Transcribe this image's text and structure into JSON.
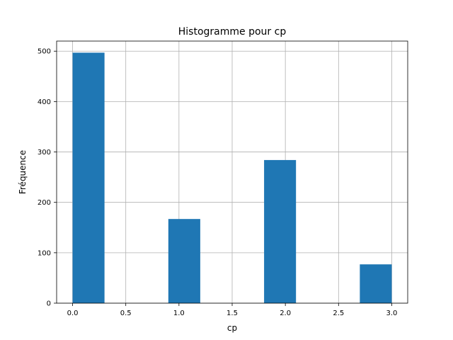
{
  "chart_data": {
    "type": "bar",
    "title": "Histogramme pour cp",
    "xlabel": "cp",
    "ylabel": "Fréquence",
    "xlim": [
      -0.15,
      3.15
    ],
    "ylim": [
      0,
      520
    ],
    "bin_width": 0.3,
    "bars": [
      {
        "x_start": 0.0,
        "x_end": 0.3,
        "value": 497
      },
      {
        "x_start": 0.3,
        "x_end": 0.6,
        "value": 0
      },
      {
        "x_start": 0.6,
        "x_end": 0.9,
        "value": 0
      },
      {
        "x_start": 0.9,
        "x_end": 1.2,
        "value": 167
      },
      {
        "x_start": 1.2,
        "x_end": 1.5,
        "value": 0
      },
      {
        "x_start": 1.5,
        "x_end": 1.8,
        "value": 0
      },
      {
        "x_start": 1.8,
        "x_end": 2.1,
        "value": 284
      },
      {
        "x_start": 2.1,
        "x_end": 2.4,
        "value": 0
      },
      {
        "x_start": 2.4,
        "x_end": 2.7,
        "value": 0
      },
      {
        "x_start": 2.7,
        "x_end": 3.0,
        "value": 77
      }
    ],
    "x_ticks": [
      "0.0",
      "0.5",
      "1.0",
      "1.5",
      "2.0",
      "2.5",
      "3.0"
    ],
    "y_ticks": [
      "0",
      "100",
      "200",
      "300",
      "400",
      "500"
    ],
    "grid": true,
    "colors": {
      "bar": "#1f77b4",
      "grid": "#b0b0b0",
      "axis": "#000000"
    }
  }
}
